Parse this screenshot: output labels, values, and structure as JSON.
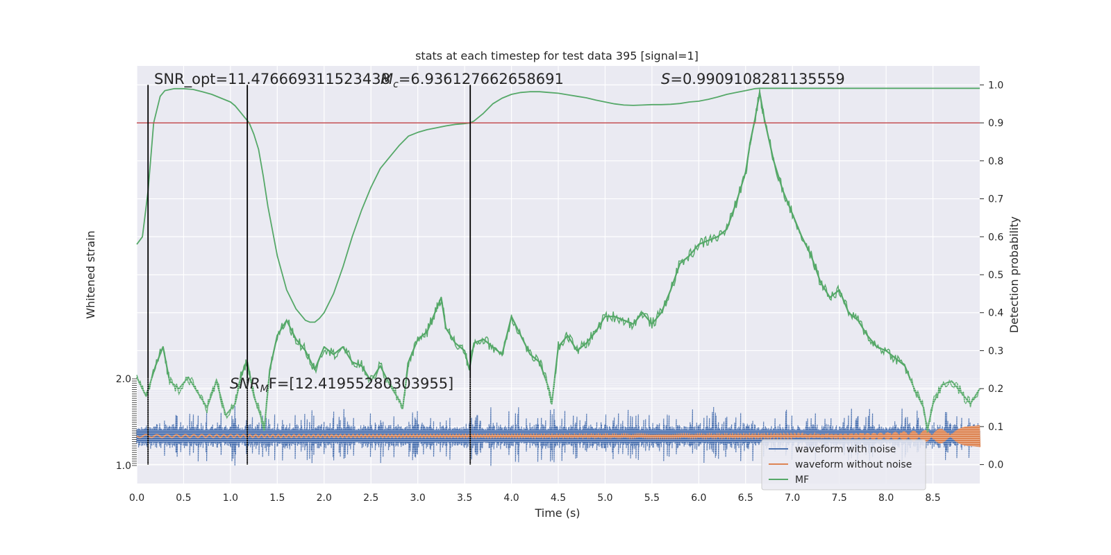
{
  "chart_data": {
    "type": "line",
    "title": "stats at each timestep for test data 395 [signal=1]",
    "xlabel": "Time (s)",
    "ylabel_left": "Whitened strain",
    "ylabel_right": "Detection probability",
    "xlim": [
      0,
      9.0
    ],
    "xticks": [
      "0.0",
      "0.5",
      "1.0",
      "1.5",
      "2.0",
      "2.5",
      "3.0",
      "3.5",
      "4.0",
      "4.5",
      "5.0",
      "5.5",
      "6.0",
      "6.5",
      "7.0",
      "7.5",
      "8.0",
      "8.5"
    ],
    "ylim_right": [
      -0.05,
      1.05
    ],
    "yticks_right": [
      "0.0",
      "0.1",
      "0.2",
      "0.3",
      "0.4",
      "0.5",
      "0.6",
      "0.7",
      "0.8",
      "0.9",
      "1.0"
    ],
    "left_axis_tick_top": "2.0",
    "left_axis_tick_bottom": "1.0",
    "grid": true,
    "threshold_line": {
      "y": 0.9,
      "color": "#c44e52"
    },
    "vertical_markers_x": [
      0.12,
      1.18,
      3.56
    ],
    "annotations": {
      "snr_opt": "SNR_opt=11.476669311523438",
      "mc_label": "M",
      "mc_sub": "c",
      "mc_value": "=6.936127662658691",
      "s_label": "S",
      "s_value": "=0.9909108281135559",
      "snr_mf_label": "SNR",
      "snr_mf_sub": "M",
      "snr_mf_value": "F=[12.41955280303955]"
    },
    "legend": {
      "placement": "lower-right",
      "entries": [
        "waveform with noise",
        "waveform without noise",
        "MF"
      ]
    },
    "colors": {
      "noise": "#4c72b0",
      "clean": "#dd8452",
      "mf": "#55a868",
      "threshold": "#c44e52",
      "marker": "#000000",
      "background": "#eaeaf2",
      "grid": "#ffffff"
    },
    "series": [
      {
        "name": "MF",
        "x": [
          0.0,
          0.06,
          0.12,
          0.18,
          0.25,
          0.3,
          0.4,
          0.5,
          0.6,
          0.7,
          0.8,
          0.9,
          1.0,
          1.05,
          1.1,
          1.15,
          1.2,
          1.25,
          1.3,
          1.35,
          1.4,
          1.5,
          1.6,
          1.7,
          1.8,
          1.85,
          1.9,
          1.95,
          2.0,
          2.1,
          2.2,
          2.3,
          2.4,
          2.5,
          2.6,
          2.7,
          2.8,
          2.9,
          3.0,
          3.1,
          3.2,
          3.3,
          3.4,
          3.5,
          3.56,
          3.6,
          3.7,
          3.8,
          3.9,
          4.0,
          4.1,
          4.2,
          4.3,
          4.4,
          4.5,
          4.6,
          4.7,
          4.8,
          4.9,
          5.0,
          5.1,
          5.2,
          5.3,
          5.4,
          5.5,
          5.6,
          5.7,
          5.8,
          5.9,
          6.0,
          6.1,
          6.2,
          6.3,
          6.4,
          6.5,
          6.6,
          6.65,
          6.7,
          6.8,
          7.0,
          7.5,
          8.0,
          8.5,
          9.0
        ],
        "y": [
          0.58,
          0.6,
          0.72,
          0.9,
          0.97,
          0.985,
          0.99,
          0.99,
          0.988,
          0.982,
          0.975,
          0.965,
          0.955,
          0.945,
          0.93,
          0.915,
          0.9,
          0.87,
          0.83,
          0.76,
          0.68,
          0.55,
          0.46,
          0.41,
          0.38,
          0.375,
          0.375,
          0.385,
          0.4,
          0.45,
          0.52,
          0.6,
          0.67,
          0.73,
          0.78,
          0.81,
          0.84,
          0.865,
          0.875,
          0.882,
          0.887,
          0.892,
          0.896,
          0.898,
          0.9,
          0.905,
          0.925,
          0.95,
          0.965,
          0.975,
          0.98,
          0.982,
          0.982,
          0.98,
          0.978,
          0.974,
          0.97,
          0.966,
          0.96,
          0.955,
          0.95,
          0.947,
          0.946,
          0.947,
          0.948,
          0.948,
          0.949,
          0.951,
          0.955,
          0.957,
          0.962,
          0.968,
          0.975,
          0.98,
          0.985,
          0.99,
          0.991,
          0.991,
          0.991,
          0.991,
          0.991,
          0.991,
          0.991,
          0.991
        ]
      },
      {
        "name": "MF",
        "x": [
          0.0,
          0.1,
          0.2,
          0.28,
          0.35,
          0.45,
          0.55,
          0.65,
          0.75,
          0.85,
          0.95,
          1.05,
          1.12,
          1.18,
          1.25,
          1.32,
          1.36,
          1.42,
          1.5,
          1.6,
          1.7,
          1.8,
          1.9,
          2.0,
          2.1,
          2.2,
          2.3,
          2.4,
          2.5,
          2.6,
          2.7,
          2.8,
          2.84,
          2.9,
          3.0,
          3.1,
          3.2,
          3.25,
          3.3,
          3.4,
          3.5,
          3.55,
          3.6,
          3.7,
          3.8,
          3.9,
          4.0,
          4.1,
          4.2,
          4.3,
          4.4,
          4.43,
          4.5,
          4.6,
          4.7,
          4.8,
          4.9,
          5.0,
          5.1,
          5.2,
          5.3,
          5.4,
          5.5,
          5.6,
          5.7,
          5.8,
          5.9,
          6.0,
          6.1,
          6.2,
          6.3,
          6.4,
          6.5,
          6.55,
          6.6,
          6.65,
          6.7,
          6.8,
          6.9,
          7.0,
          7.1,
          7.2,
          7.3,
          7.4,
          7.5,
          7.6,
          7.7,
          7.8,
          7.9,
          8.0,
          8.1,
          8.2,
          8.3,
          8.4,
          8.44,
          8.5,
          8.6,
          8.7,
          8.8,
          8.9,
          9.0
        ],
        "y": [
          0.23,
          0.18,
          0.26,
          0.31,
          0.22,
          0.2,
          0.23,
          0.19,
          0.15,
          0.22,
          0.13,
          0.16,
          0.24,
          0.27,
          0.18,
          0.13,
          0.09,
          0.25,
          0.34,
          0.38,
          0.33,
          0.3,
          0.25,
          0.31,
          0.29,
          0.31,
          0.27,
          0.26,
          0.22,
          0.26,
          0.21,
          0.17,
          0.15,
          0.27,
          0.33,
          0.35,
          0.41,
          0.44,
          0.36,
          0.32,
          0.3,
          0.25,
          0.32,
          0.33,
          0.31,
          0.29,
          0.39,
          0.34,
          0.29,
          0.27,
          0.2,
          0.16,
          0.31,
          0.34,
          0.3,
          0.32,
          0.35,
          0.39,
          0.39,
          0.38,
          0.37,
          0.4,
          0.37,
          0.4,
          0.46,
          0.53,
          0.55,
          0.58,
          0.59,
          0.6,
          0.62,
          0.69,
          0.77,
          0.85,
          0.91,
          0.98,
          0.91,
          0.8,
          0.72,
          0.66,
          0.6,
          0.55,
          0.48,
          0.44,
          0.46,
          0.4,
          0.38,
          0.34,
          0.31,
          0.3,
          0.28,
          0.26,
          0.2,
          0.15,
          0.09,
          0.16,
          0.21,
          0.22,
          0.19,
          0.16,
          0.2
        ]
      },
      {
        "name": "waveform with noise",
        "x": [
          0.0,
          9.0
        ],
        "y": [
          0.075,
          0.075
        ]
      },
      {
        "name": "waveform without noise",
        "x": [
          0.0,
          9.0
        ],
        "y": [
          0.075,
          0.075
        ]
      }
    ]
  }
}
